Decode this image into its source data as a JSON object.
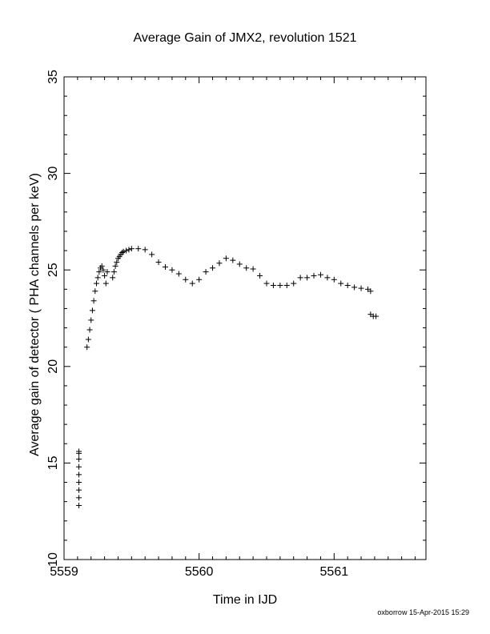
{
  "chart_data": {
    "type": "scatter",
    "title": "Average Gain of JMX2, revolution 1521",
    "xlabel": "Time in IJD",
    "ylabel": "Average gain of detector ( PHA channels per keV)",
    "xlim": [
      5559,
      5561.68
    ],
    "ylim": [
      10,
      35
    ],
    "x_ticks": [
      "5559",
      "5560",
      "5561"
    ],
    "y_ticks": [
      "10",
      "15",
      "20",
      "25",
      "30",
      "35"
    ],
    "marker": "+",
    "color": "#000000",
    "grid": false,
    "series": [
      {
        "x": [
          5559.11,
          5559.11,
          5559.11,
          5559.11,
          5559.11,
          5559.11,
          5559.11,
          5559.11,
          5559.11,
          5559.17,
          5559.18,
          5559.19,
          5559.2,
          5559.21,
          5559.22,
          5559.23,
          5559.24,
          5559.25,
          5559.26,
          5559.27,
          5559.28,
          5559.29,
          5559.3,
          5559.31,
          5559.32,
          5559.36,
          5559.37,
          5559.38,
          5559.39,
          5559.4,
          5559.41,
          5559.42,
          5559.43,
          5559.44,
          5559.46,
          5559.48,
          5559.5,
          5559.55,
          5559.6,
          5559.65,
          5559.7,
          5559.75,
          5559.8,
          5559.85,
          5559.9,
          5559.95,
          5560.0,
          5560.05,
          5560.1,
          5560.15,
          5560.2,
          5560.25,
          5560.3,
          5560.35,
          5560.4,
          5560.45,
          5560.5,
          5560.55,
          5560.6,
          5560.65,
          5560.7,
          5560.75,
          5560.8,
          5560.85,
          5560.9,
          5560.95,
          5561.0,
          5561.05,
          5561.1,
          5561.15,
          5561.2,
          5561.25,
          5561.27,
          5561.27,
          5561.29,
          5561.31
        ],
        "y": [
          12.8,
          13.2,
          13.6,
          14.0,
          14.4,
          14.8,
          15.2,
          15.5,
          15.6,
          21.0,
          21.4,
          21.9,
          22.4,
          22.9,
          23.4,
          23.9,
          24.3,
          24.6,
          24.9,
          25.1,
          25.2,
          25.0,
          24.7,
          24.3,
          24.9,
          24.6,
          24.9,
          25.2,
          25.4,
          25.6,
          25.7,
          25.8,
          25.9,
          25.95,
          26.0,
          26.05,
          26.1,
          26.1,
          26.05,
          25.8,
          25.4,
          25.15,
          25.0,
          24.8,
          24.5,
          24.3,
          24.5,
          24.9,
          25.1,
          25.35,
          25.6,
          25.5,
          25.3,
          25.1,
          25.05,
          24.7,
          24.3,
          24.2,
          24.2,
          24.2,
          24.3,
          24.6,
          24.6,
          24.7,
          24.75,
          24.6,
          24.5,
          24.3,
          24.2,
          24.1,
          24.05,
          24.0,
          23.9,
          22.7,
          22.6,
          22.6
        ]
      }
    ]
  },
  "footer": {
    "text": "oxborrow 15-Apr-2015 15:29"
  }
}
